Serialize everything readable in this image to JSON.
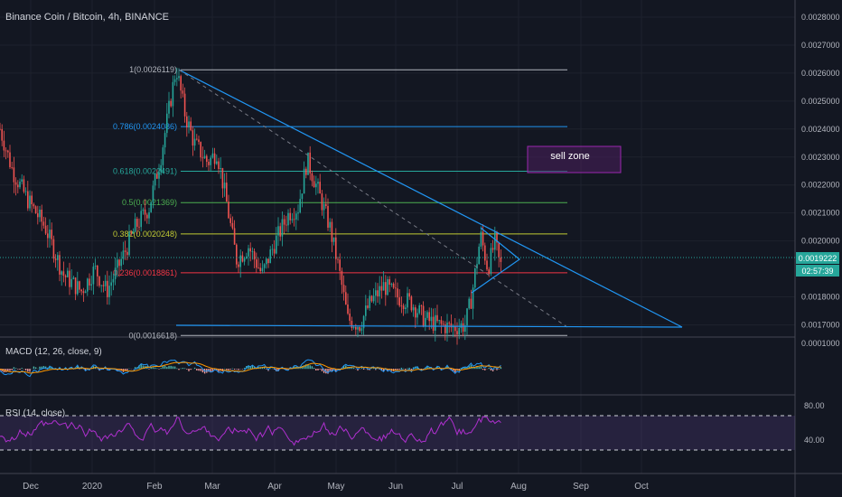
{
  "header": {
    "title": "Binance Coin / Bitcoin, 4h, BINANCE"
  },
  "indicators": {
    "macd_label": "MACD (12, 26, close, 9)",
    "rsi_label": "RSI (14, close)"
  },
  "price_axis": {
    "ticks": [
      "0.0028000",
      "0.0027000",
      "0.0026000",
      "0.0025000",
      "0.0024000",
      "0.0023000",
      "0.0022000",
      "0.0021000",
      "0.0020000",
      "0.0018000",
      "0.0017000"
    ],
    "last_price": "0.0019222",
    "countdown": "02:57:39"
  },
  "macd_axis": {
    "ticks": [
      "0.0001000"
    ]
  },
  "rsi_axis": {
    "ticks": [
      "80.00",
      "40.00"
    ]
  },
  "time_axis": {
    "ticks": [
      "Dec",
      "2020",
      "Feb",
      "Mar",
      "Apr",
      "May",
      "Jun",
      "Jul",
      "Aug",
      "Sep",
      "Oct"
    ]
  },
  "fib_levels": [
    {
      "label": "1(0.0026119)",
      "value": 0.0026119,
      "color": "#b2b5be"
    },
    {
      "label": "0.786(0.0024086)",
      "value": 0.0024086,
      "color": "#2196f3"
    },
    {
      "label": "0.618(0.0022491)",
      "value": 0.0022491,
      "color": "#26a69a"
    },
    {
      "label": "0.5(0.0021369)",
      "value": 0.0021369,
      "color": "#4caf50"
    },
    {
      "label": "0.382(0.0020248)",
      "value": 0.0020248,
      "color": "#c0ca33"
    },
    {
      "label": "0.236(0.0018861)",
      "value": 0.0018861,
      "color": "#f23645"
    },
    {
      "label": "0(0.0016618)",
      "value": 0.0016618,
      "color": "#b2b5be"
    }
  ],
  "annotation": {
    "sell_zone": "sell zone"
  },
  "colors": {
    "up": "#26a69a",
    "down": "#ef5350",
    "trend": "#2196f3",
    "rsi": "#b030d0",
    "macd": "#2196f3",
    "signal": "#ff9800",
    "sell_zone_border": "#9c27b0"
  },
  "chart_data": {
    "type": "candlestick",
    "price_range": [
      0.0016,
      0.00282
    ],
    "rsi_range": [
      0,
      100
    ],
    "rsi_band": [
      30,
      70
    ],
    "trendline_points": [
      [
        "Feb 10",
        0.0026119
      ],
      [
        "Aug 25",
        0.0016618
      ]
    ]
  }
}
